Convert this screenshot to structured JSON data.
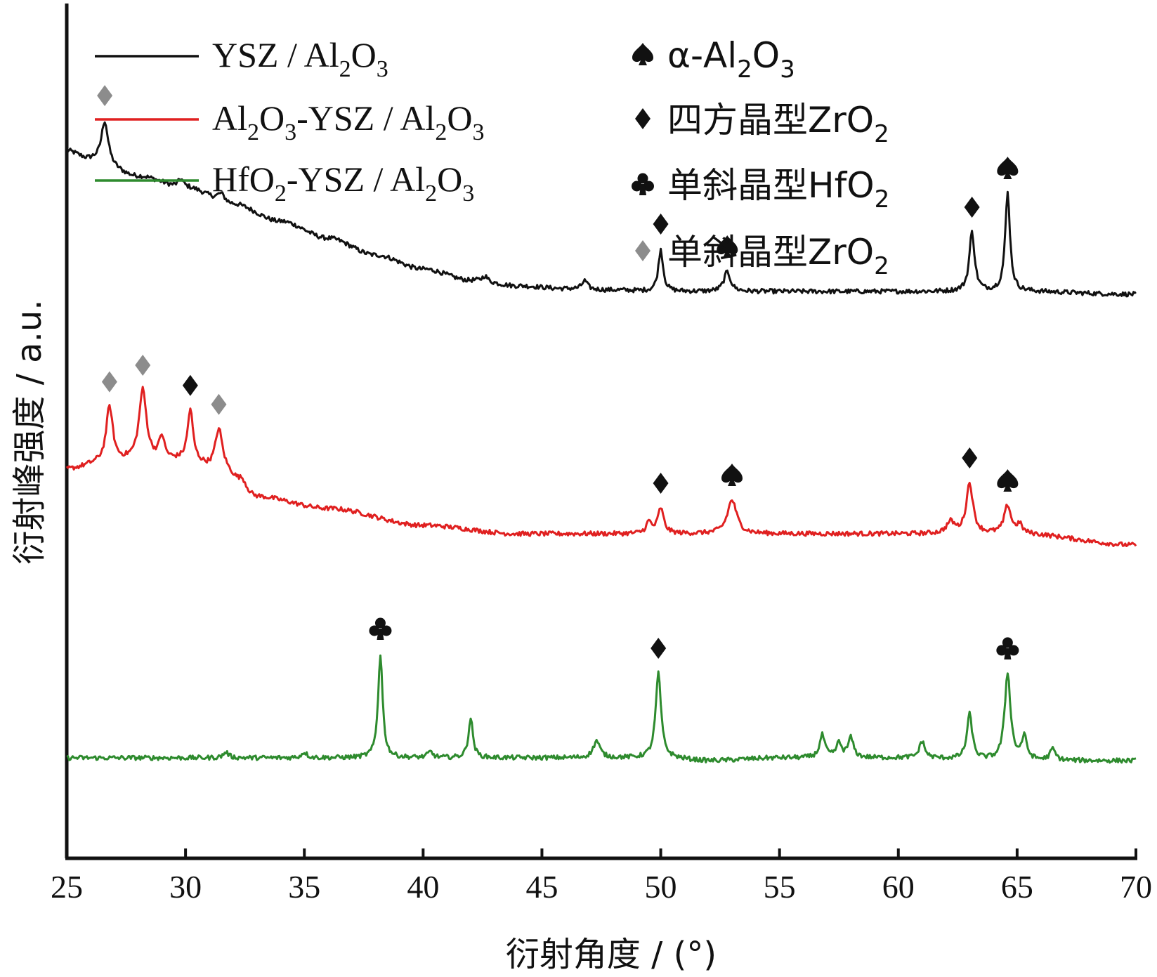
{
  "chart_data": {
    "type": "line",
    "xlabel": "衍射角度 / (°)",
    "ylabel": "衍射峰强度 / a.u.",
    "xlim": [
      25,
      70
    ],
    "xticks": [
      "25",
      "30",
      "35",
      "40",
      "45",
      "50",
      "55",
      "60",
      "65",
      "70"
    ],
    "yticks_shown": false,
    "legend_position": "top-left",
    "series": [
      {
        "name": "YSZ / Al2O3",
        "name_parts": {
          "a": "YSZ / Al",
          "a_sub": "2",
          "b": "O",
          "b_sub": "3"
        },
        "color": "#111111",
        "baseline": [
          [
            25,
            75
          ],
          [
            26,
            72
          ],
          [
            28,
            66
          ],
          [
            30,
            62
          ],
          [
            32,
            56
          ],
          [
            34,
            50
          ],
          [
            36,
            44
          ],
          [
            38,
            38
          ],
          [
            40,
            33
          ],
          [
            42,
            29
          ],
          [
            44,
            27
          ],
          [
            46,
            26
          ],
          [
            48,
            25.5
          ],
          [
            50,
            25
          ],
          [
            55,
            25
          ],
          [
            60,
            25
          ],
          [
            65,
            25
          ],
          [
            70,
            24
          ]
        ],
        "peaks": [
          {
            "x": 26.6,
            "height": 15,
            "width": 0.25,
            "marker": "diamond-gray"
          },
          {
            "x": 29.8,
            "height": 3,
            "width": 0.2
          },
          {
            "x": 31.5,
            "height": 3,
            "width": 0.3
          },
          {
            "x": 42.6,
            "height": 2,
            "width": 0.2
          },
          {
            "x": 46.8,
            "height": 3,
            "width": 0.2
          },
          {
            "x": 50.0,
            "height": 15,
            "width": 0.18,
            "marker": "diamond-black"
          },
          {
            "x": 52.8,
            "height": 7,
            "width": 0.25,
            "marker": "spade"
          },
          {
            "x": 63.1,
            "height": 21,
            "width": 0.2,
            "marker": "diamond-black"
          },
          {
            "x": 64.6,
            "height": 35,
            "width": 0.18,
            "marker": "spade"
          }
        ]
      },
      {
        "name": "Al2O3-YSZ / Al2O3",
        "name_parts": {
          "a": "Al",
          "a_sub": "2",
          "b": "O",
          "b_sub": "3",
          "c": "-YSZ / Al",
          "c_sub": "2",
          "d": "O",
          "d_sub": "3"
        },
        "color": "#e02020",
        "baseline": [
          [
            25,
            23
          ],
          [
            26.5,
            25
          ],
          [
            28,
            26
          ],
          [
            30,
            26
          ],
          [
            31.5,
            22
          ],
          [
            33,
            13
          ],
          [
            36,
            9
          ],
          [
            40,
            3
          ],
          [
            44,
            0
          ],
          [
            48,
            0
          ],
          [
            52,
            0
          ],
          [
            55,
            0
          ],
          [
            60,
            0
          ],
          [
            65,
            0
          ],
          [
            70,
            -4
          ]
        ],
        "peaks": [
          {
            "x": 26.8,
            "height": 20,
            "width": 0.25,
            "marker": "diamond-gray"
          },
          {
            "x": 28.2,
            "height": 25,
            "width": 0.28,
            "marker": "diamond-gray"
          },
          {
            "x": 29.0,
            "height": 8,
            "width": 0.2
          },
          {
            "x": 30.2,
            "height": 18,
            "width": 0.2,
            "marker": "diamond-black"
          },
          {
            "x": 31.4,
            "height": 15,
            "width": 0.28,
            "marker": "diamond-gray"
          },
          {
            "x": 32.4,
            "height": 3,
            "width": 0.3
          },
          {
            "x": 49.5,
            "height": 4,
            "width": 0.2
          },
          {
            "x": 50.0,
            "height": 9,
            "width": 0.22,
            "marker": "diamond-black"
          },
          {
            "x": 53.0,
            "height": 12,
            "width": 0.35,
            "marker": "spade"
          },
          {
            "x": 62.2,
            "height": 4,
            "width": 0.3
          },
          {
            "x": 63.0,
            "height": 18,
            "width": 0.25,
            "marker": "diamond-black"
          },
          {
            "x": 64.6,
            "height": 10,
            "width": 0.25,
            "marker": "spade"
          },
          {
            "x": 65.1,
            "height": 3,
            "width": 0.2
          }
        ]
      },
      {
        "name": "HfO2-YSZ / Al2O3",
        "name_parts": {
          "a": "HfO",
          "a_sub": "2",
          "b": "-YSZ / Al",
          "b_sub": "2",
          "c": "O",
          "c_sub": "3"
        },
        "color": "#2e8b2e",
        "baseline": [
          [
            25,
            -1
          ],
          [
            30,
            -1
          ],
          [
            35,
            -1
          ],
          [
            38,
            -1
          ],
          [
            40,
            -1
          ],
          [
            45,
            -1
          ],
          [
            50,
            -1
          ],
          [
            52,
            -2
          ],
          [
            55,
            -1
          ],
          [
            60,
            -1
          ],
          [
            65,
            -2
          ],
          [
            70,
            -2
          ]
        ],
        "peaks": [
          {
            "x": 31.7,
            "height": 2,
            "width": 0.2
          },
          {
            "x": 35.0,
            "height": 2,
            "width": 0.2
          },
          {
            "x": 38.2,
            "height": 37,
            "width": 0.17,
            "marker": "club"
          },
          {
            "x": 40.3,
            "height": 2,
            "width": 0.2
          },
          {
            "x": 42.0,
            "height": 14,
            "width": 0.17
          },
          {
            "x": 47.3,
            "height": 6,
            "width": 0.25
          },
          {
            "x": 49.9,
            "height": 30,
            "width": 0.2,
            "marker": "diamond-black"
          },
          {
            "x": 56.8,
            "height": 8,
            "width": 0.2
          },
          {
            "x": 57.5,
            "height": 5,
            "width": 0.2
          },
          {
            "x": 58.0,
            "height": 7,
            "width": 0.2
          },
          {
            "x": 61.0,
            "height": 6,
            "width": 0.2
          },
          {
            "x": 63.0,
            "height": 16,
            "width": 0.2
          },
          {
            "x": 64.6,
            "height": 31,
            "width": 0.22,
            "marker": "club"
          },
          {
            "x": 65.3,
            "height": 8,
            "width": 0.2
          },
          {
            "x": 66.5,
            "height": 4,
            "width": 0.2
          }
        ]
      }
    ],
    "phase_legend": [
      {
        "marker": "spade",
        "text": "α-Al",
        "sub1": "2",
        "text2": "O",
        "sub2": "3"
      },
      {
        "marker": "diamond-black",
        "text": "四方晶型ZrO",
        "sub1": "2"
      },
      {
        "marker": "club",
        "text": "单斜晶型HfO",
        "sub1": "2"
      },
      {
        "marker": "diamond-gray",
        "text": "单斜晶型ZrO",
        "sub1": "2"
      }
    ],
    "marker_colors": {
      "spade": "#111111",
      "diamond-black": "#111111",
      "club": "#111111",
      "diamond-gray": "#8c8c8c"
    }
  }
}
